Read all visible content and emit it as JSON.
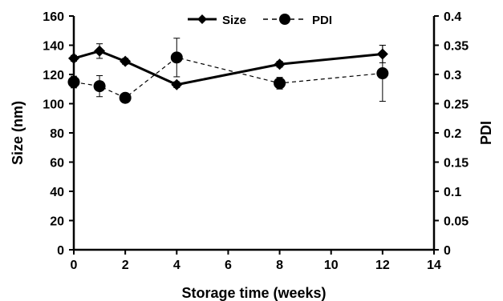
{
  "chart_data": {
    "type": "line",
    "title": "",
    "xlabel": "Storage time (weeks)",
    "ylabel": "Size (nm)",
    "y2label": "PDI",
    "xlim": [
      0,
      14
    ],
    "ylim": [
      0,
      160
    ],
    "y2lim": [
      0,
      0.4
    ],
    "xticks": [
      "0",
      "2",
      "4",
      "6",
      "8",
      "10",
      "12",
      "14"
    ],
    "yticks": [
      "0",
      "20",
      "40",
      "60",
      "80",
      "100",
      "120",
      "140",
      "160"
    ],
    "y2ticks": [
      "0",
      "0.05",
      "0.1",
      "0.15",
      "0.2",
      "0.25",
      "0.3",
      "0.35",
      "0.4"
    ],
    "grid": false,
    "legend_position": "top-center",
    "series": [
      {
        "name": "Size",
        "axis": "left",
        "marker": "diamond",
        "line_style": "solid",
        "color": "#000000",
        "x": [
          0,
          1,
          2,
          4,
          8,
          12
        ],
        "y": [
          131,
          136,
          129,
          113,
          127,
          134
        ],
        "error": [
          2,
          5,
          2,
          2,
          2,
          6
        ]
      },
      {
        "name": "PDI",
        "axis": "right",
        "marker": "circle",
        "line_style": "dashed",
        "color": "#000000",
        "x": [
          0,
          1,
          2,
          4,
          8,
          12
        ],
        "y": [
          0.287,
          0.28,
          0.26,
          0.329,
          0.285,
          0.302
        ],
        "error": [
          0.01,
          0.018,
          0.005,
          0.033,
          0.01,
          0.048
        ]
      }
    ]
  }
}
